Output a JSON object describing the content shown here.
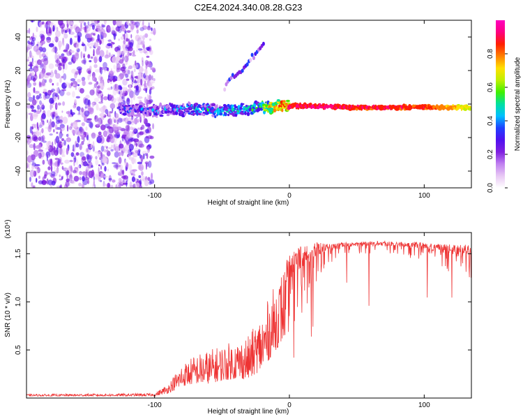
{
  "title": "C2E4.2024.340.08.28.G23",
  "chart_data": [
    {
      "type": "heatmap",
      "title": "C2E4.2024.340.08.28.G23",
      "xlabel": "Height of straight line (km)",
      "ylabel": "Frequency (Hz)",
      "xlim": [
        -195,
        135
      ],
      "ylim": [
        -50,
        50
      ],
      "xticks": [
        -100,
        0,
        100
      ],
      "yticks": [
        -40,
        -20,
        0,
        20,
        40
      ],
      "grid": false,
      "colorbar": {
        "label": "Normalized spectral amplitude",
        "range": [
          0,
          1
        ],
        "ticks": [
          "0.0",
          "0.2",
          "0.4",
          "0.6",
          "0.8"
        ],
        "colors": [
          "#ffffff",
          "#e8c8f4",
          "#c080f0",
          "#8020e0",
          "#5010f0",
          "#2040ff",
          "#00c0ff",
          "#00e0a0",
          "#40f000",
          "#c0f000",
          "#ffe000",
          "#ff8000",
          "#ff2000",
          "#ff0080",
          "#ff00c0"
        ]
      },
      "ridge": {
        "x": [
          -125,
          -100,
          -75,
          -50,
          -25,
          0,
          25,
          50,
          75,
          100,
          135
        ],
        "y": [
          -3,
          -4,
          -3,
          -4,
          -2,
          -1,
          -1.5,
          -2,
          -2,
          -2,
          -2
        ],
        "amplitude": [
          0.25,
          0.3,
          0.35,
          0.4,
          0.45,
          0.9,
          0.95,
          0.9,
          0.9,
          0.88,
          0.7
        ]
      }
    },
    {
      "type": "line",
      "xlabel": "Height of straight line (km)",
      "ylabel": "SNR (10 * v/v)",
      "y_multiplier": "(x10⁴)",
      "xlim": [
        -195,
        135
      ],
      "ylim": [
        0,
        1.72
      ],
      "xticks": [
        -100,
        0,
        100
      ],
      "yticks": [
        "0.5",
        "1.0",
        "1.5"
      ],
      "color": "#ee3333",
      "envelope": {
        "x": [
          -195,
          -100,
          -90,
          -80,
          -70,
          -60,
          -50,
          -40,
          -30,
          -20,
          -10,
          0,
          10,
          20,
          30,
          40,
          50,
          60,
          70,
          80,
          90,
          100,
          110,
          120,
          135
        ],
        "base": [
          0.02,
          0.02,
          0.05,
          0.12,
          0.15,
          0.15,
          0.18,
          0.2,
          0.2,
          0.3,
          0.5,
          0.7,
          0.9,
          1.2,
          1.4,
          1.48,
          1.5,
          1.5,
          1.5,
          1.5,
          1.45,
          1.4,
          1.35,
          1.3,
          1.2
        ],
        "top": [
          0.04,
          0.05,
          0.15,
          0.35,
          0.45,
          0.5,
          0.55,
          0.6,
          0.65,
          0.9,
          1.2,
          1.5,
          1.6,
          1.62,
          1.6,
          1.62,
          1.62,
          1.63,
          1.63,
          1.62,
          1.62,
          1.62,
          1.6,
          1.6,
          1.6
        ]
      }
    }
  ]
}
